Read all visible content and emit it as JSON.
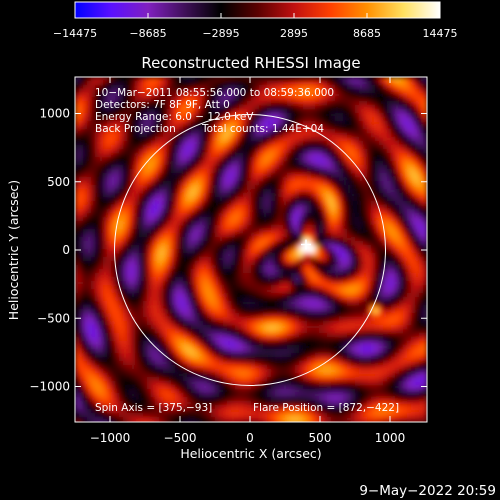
{
  "chart_data": {
    "type": "heatmap",
    "title": "Reconstructed RHESSI Image",
    "xlabel": "Heliocentric X (arcsec)",
    "ylabel": "Heliocentric Y (arcsec)",
    "xlim": [
      -1300,
      1300
    ],
    "ylim": [
      -1300,
      1300
    ],
    "xticks": [
      -1000,
      -500,
      0,
      500,
      1000
    ],
    "yticks": [
      1000,
      500,
      0,
      -500,
      -1000
    ],
    "xticklabels": [
      "−1000",
      "−500",
      "0",
      "500",
      "1000"
    ],
    "yticklabels": [
      "1000",
      "500",
      "0",
      "−500",
      "−1000"
    ],
    "colorbar": {
      "min": -14475,
      "max": 14475,
      "ticks": [
        -14475,
        -8685,
        -2895,
        2895,
        8685,
        14475
      ],
      "ticklabels": [
        "−14475",
        "−8685",
        "−2895",
        "2895",
        "8685",
        "14475"
      ],
      "colors": [
        "#0000ff",
        "#5a10ff",
        "#8020c0",
        "#40105a",
        "#000000",
        "#5a0000",
        "#c01010",
        "#ff4000",
        "#ff9000",
        "#ffe060",
        "#ffffff"
      ]
    },
    "annotations": {
      "line1": "10−Mar−2011 08:55:56.000 to 08:59:36.000",
      "line2": "Detectors: 7F 8F 9F, Att 0",
      "line3": "Energy Range: 6.0 − 12.0 keV",
      "line4a": "Back Projection",
      "line4b": "Total counts: 1.44E+04",
      "spin_axis": "Spin Axis = [375,−93]",
      "flare_position": "Flare Position = [872,−422]"
    },
    "solar_limb_radius_arcsec": 980,
    "solar_limb_center": [
      0,
      0
    ],
    "sources": [
      {
        "x": 400,
        "y": 40,
        "peak": "positive-max",
        "marker": "plus"
      },
      {
        "x": 880,
        "y": -420,
        "peak": "positive-high"
      },
      {
        "x": 330,
        "y": -200,
        "peak": "negative"
      }
    ],
    "timestamp": "9−May−2022 20:59"
  },
  "colors": {
    "background": "#000000",
    "foreground": "#ffffff"
  }
}
